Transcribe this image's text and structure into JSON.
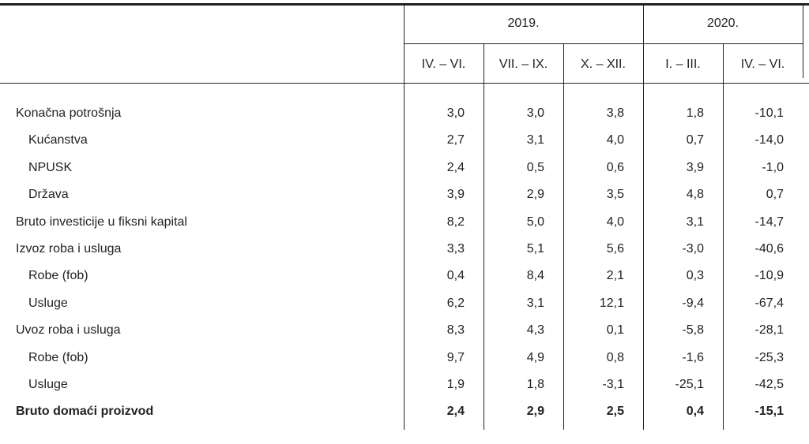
{
  "header": {
    "years": [
      "2019.",
      "2020."
    ],
    "periods": [
      "IV. – VI.",
      "VII. – IX.",
      "X. – XII.",
      "I. – III.",
      "IV. – VI."
    ]
  },
  "table": {
    "rows": [
      [
        "Konačna potrošnja",
        "3,0",
        "3,0",
        "3,8",
        "1,8",
        "-10,1"
      ],
      [
        "Kućanstva",
        "2,7",
        "3,1",
        "4,0",
        "0,7",
        "-14,0"
      ],
      [
        "NPUSK",
        "2,4",
        "0,5",
        "0,6",
        "3,9",
        "-1,0"
      ],
      [
        "Država",
        "3,9",
        "2,9",
        "3,5",
        "4,8",
        "0,7"
      ],
      [
        "Bruto investicije u fiksni kapital",
        "8,2",
        "5,0",
        "4,0",
        "3,1",
        "-14,7"
      ],
      [
        "Izvoz roba i usluga",
        "3,3",
        "5,1",
        "5,6",
        "-3,0",
        "-40,6"
      ],
      [
        "Robe (fob)",
        "0,4",
        "8,4",
        "2,1",
        "0,3",
        "-10,9"
      ],
      [
        "Usluge",
        "6,2",
        "3,1",
        "12,1",
        "-9,4",
        "-67,4"
      ],
      [
        "Uvoz roba i usluga",
        "8,3",
        "4,3",
        "0,1",
        "-5,8",
        "-28,1"
      ],
      [
        "Robe (fob)",
        "9,7",
        "4,9",
        "0,8",
        "-1,6",
        "-25,3"
      ],
      [
        "Usluge",
        "1,9",
        "1,8",
        "-3,1",
        "-25,1",
        "-42,5"
      ],
      [
        "Bruto domaći proizvod",
        "2,4",
        "2,9",
        "2,5",
        "0,4",
        "-15,1"
      ]
    ]
  }
}
